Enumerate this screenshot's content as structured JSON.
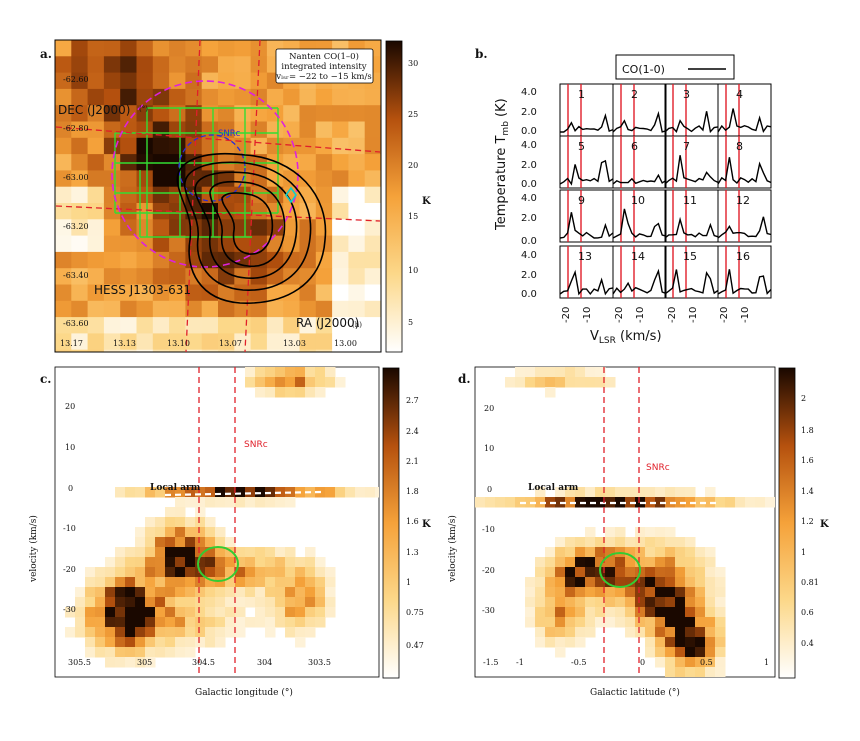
{
  "panels": {
    "a": {
      "letter": "a.",
      "legend": [
        "Nanten CO(1–0)",
        "integrated intensity",
        "vₗₛᵣ= −22 to −15 km/s"
      ],
      "dec_label": "DEC (J2000)",
      "dec_unit": "(°)",
      "ra_label": "RA (J2000)",
      "ra_unit": "(h)",
      "source_label": "HESS J1303-631",
      "snr_label": "SNRc",
      "y_ticks": [
        "-62.60",
        "-62.80",
        "-63.00",
        "-63.20",
        "-63.40",
        "-63.60"
      ],
      "x_ticks": [
        "13.17",
        "13.13",
        "13.10",
        "13.07",
        "13.03",
        "13.00"
      ],
      "colorbar_ticks": [
        "30",
        "25",
        "20",
        "15",
        "10",
        "5"
      ],
      "colorbar_unit": "K"
    },
    "b": {
      "letter": "b.",
      "legend": "CO(1-0)",
      "ylabel": "Temperature T",
      "ylabel_sub": "mb",
      "ylabel_unit": "(K)",
      "xlabel": "V",
      "xlabel_sub": "LSR",
      "xlabel_unit": "(km/s)",
      "y_ticks": [
        "4.0",
        "2.0",
        "0.0"
      ],
      "x_ticks": [
        "-20",
        "-10"
      ],
      "subpanel_labels": [
        "1",
        "2",
        "3",
        "4",
        "5",
        "6",
        "7",
        "8",
        "9",
        "10",
        "11",
        "12",
        "13",
        "14",
        "15",
        "16"
      ]
    },
    "c": {
      "letter": "c.",
      "ylabel": "velocity (km/s)",
      "xlabel": "Galactic longitude (°)",
      "y_ticks": [
        "20",
        "10",
        "0",
        "-10",
        "-20",
        "-30"
      ],
      "x_ticks": [
        "305.5",
        "305",
        "304.5",
        "304",
        "303.5"
      ],
      "arm_label": "Local arm",
      "snr_label": "SNRc",
      "colorbar_ticks": [
        "2.7",
        "2.4",
        "2.1",
        "1.8",
        "1.6",
        "1.3",
        "1",
        "0.75",
        "0.47"
      ],
      "colorbar_unit": "K"
    },
    "d": {
      "letter": "d.",
      "ylabel": "velocity (km/s)",
      "xlabel": "Galactic latitude (°)",
      "y_ticks": [
        "20",
        "10",
        "0",
        "-10",
        "-20",
        "-30"
      ],
      "x_ticks": [
        "-1.5",
        "-1",
        "-0.5",
        "0",
        "0.5",
        "1"
      ],
      "arm_label": "Local arm",
      "snr_label": "SNRc",
      "colorbar_ticks": [
        "2",
        "1.8",
        "1.6",
        "1.4",
        "1.2",
        "1",
        "0.81",
        "0.6",
        "0.4"
      ],
      "colorbar_unit": "K"
    }
  },
  "colors": {
    "snr_line": "#e0202a",
    "grid": "#33dd33",
    "circle": "#dd22dd",
    "contour": "#000000",
    "ellipse": "#33cc33"
  }
}
